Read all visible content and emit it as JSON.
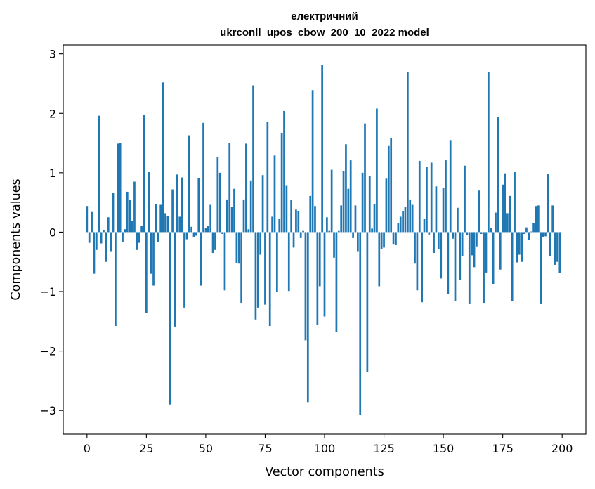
{
  "chart_data": {
    "type": "bar",
    "title": [
      "електричний",
      "ukrconll_upos_cbow_200_10_2022 model"
    ],
    "xlabel": "Vector components",
    "ylabel": "Components values",
    "xlim": [
      -10,
      210
    ],
    "ylim": [
      -3.4,
      3.15
    ],
    "xticks": [
      0,
      25,
      50,
      75,
      100,
      125,
      150,
      175,
      200
    ],
    "xtick_labels": [
      "0",
      "25",
      "50",
      "75",
      "100",
      "125",
      "150",
      "175",
      "200"
    ],
    "yticks": [
      -3,
      -2,
      -1,
      0,
      1,
      2,
      3
    ],
    "ytick_labels": [
      "−3",
      "−2",
      "−1",
      "0",
      "1",
      "2",
      "3"
    ],
    "grid": false,
    "color": "#1f77b4",
    "x": [
      0,
      1,
      2,
      3,
      4,
      5,
      6,
      7,
      8,
      9,
      10,
      11,
      12,
      13,
      14,
      15,
      16,
      17,
      18,
      19,
      20,
      21,
      22,
      23,
      24,
      25,
      26,
      27,
      28,
      29,
      30,
      31,
      32,
      33,
      34,
      35,
      36,
      37,
      38,
      39,
      40,
      41,
      42,
      43,
      44,
      45,
      46,
      47,
      48,
      49,
      50,
      51,
      52,
      53,
      54,
      55,
      56,
      57,
      58,
      59,
      60,
      61,
      62,
      63,
      64,
      65,
      66,
      67,
      68,
      69,
      70,
      71,
      72,
      73,
      74,
      75,
      76,
      77,
      78,
      79,
      80,
      81,
      82,
      83,
      84,
      85,
      86,
      87,
      88,
      89,
      90,
      91,
      92,
      93,
      94,
      95,
      96,
      97,
      98,
      99,
      100,
      101,
      102,
      103,
      104,
      105,
      106,
      107,
      108,
      109,
      110,
      111,
      112,
      113,
      114,
      115,
      116,
      117,
      118,
      119,
      120,
      121,
      122,
      123,
      124,
      125,
      126,
      127,
      128,
      129,
      130,
      131,
      132,
      133,
      134,
      135,
      136,
      137,
      138,
      139,
      140,
      141,
      142,
      143,
      144,
      145,
      146,
      147,
      148,
      149,
      150,
      151,
      152,
      153,
      154,
      155,
      156,
      157,
      158,
      159,
      160,
      161,
      162,
      163,
      164,
      165,
      166,
      167,
      168,
      169,
      170,
      171,
      172,
      173,
      174,
      175,
      176,
      177,
      178,
      179,
      180,
      181,
      182,
      183,
      184,
      185,
      186,
      187,
      188,
      189,
      190,
      191,
      192,
      193,
      194,
      195,
      196,
      197,
      198,
      199
    ],
    "values": [
      0.44,
      -0.18,
      0.34,
      -0.7,
      -0.3,
      1.96,
      -0.19,
      0.03,
      -0.5,
      0.25,
      -0.32,
      0.66,
      -1.58,
      1.49,
      1.5,
      -0.16,
      0.05,
      0.68,
      0.54,
      0.19,
      0.85,
      -0.3,
      -0.18,
      0.11,
      1.97,
      -1.36,
      1.01,
      -0.7,
      -0.9,
      0.47,
      -0.16,
      0.46,
      2.52,
      0.32,
      0.27,
      -2.9,
      0.72,
      -1.59,
      0.97,
      0.26,
      0.92,
      -1.27,
      -0.12,
      1.63,
      0.09,
      -0.08,
      -0.06,
      0.91,
      -0.9,
      1.84,
      0.07,
      0.1,
      0.46,
      -0.35,
      -0.3,
      1.26,
      1.0,
      -0.03,
      -0.98,
      0.55,
      1.5,
      0.43,
      0.73,
      -0.52,
      -0.53,
      -1.19,
      0.55,
      1.49,
      0.05,
      0.87,
      2.47,
      -1.47,
      -1.27,
      -0.38,
      0.96,
      -1.22,
      1.86,
      -1.58,
      0.26,
      1.29,
      -1.0,
      0.23,
      1.66,
      2.04,
      0.78,
      -0.99,
      0.54,
      -0.26,
      0.38,
      0.35,
      -0.1,
      0.02,
      -1.82,
      -2.86,
      0.61,
      2.39,
      0.44,
      -1.56,
      -0.91,
      2.81,
      -1.42,
      0.25,
      0.02,
      1.05,
      -0.43,
      -1.68,
      0.02,
      0.45,
      1.03,
      1.48,
      0.73,
      1.21,
      -0.1,
      0.45,
      -0.32,
      -3.08,
      1.0,
      1.83,
      -2.35,
      0.94,
      0.06,
      0.47,
      2.08,
      -0.91,
      -0.28,
      -0.26,
      0.9,
      1.45,
      1.59,
      -0.21,
      -0.22,
      0.15,
      0.26,
      0.35,
      0.43,
      2.69,
      0.55,
      0.46,
      -0.53,
      -0.98,
      1.2,
      -1.18,
      0.23,
      1.1,
      -0.04,
      1.17,
      -0.35,
      0.77,
      -0.28,
      -0.78,
      0.74,
      1.21,
      -1.04,
      1.55,
      -0.11,
      -1.16,
      0.41,
      -0.81,
      -0.4,
      1.12,
      -0.05,
      -1.2,
      -0.39,
      -0.59,
      -0.24,
      0.7,
      -0.03,
      -1.19,
      -0.68,
      2.69,
      0.07,
      -0.87,
      0.33,
      1.94,
      -0.63,
      0.8,
      0.99,
      0.32,
      0.61,
      -1.16,
      1.01,
      -0.51,
      -0.38,
      -0.5,
      -0.03,
      0.08,
      -0.13,
      0.01,
      0.15,
      0.44,
      0.45,
      -1.2,
      -0.08,
      -0.07,
      0.98,
      -0.4,
      0.45,
      -0.55,
      -0.5,
      -0.69
    ]
  }
}
